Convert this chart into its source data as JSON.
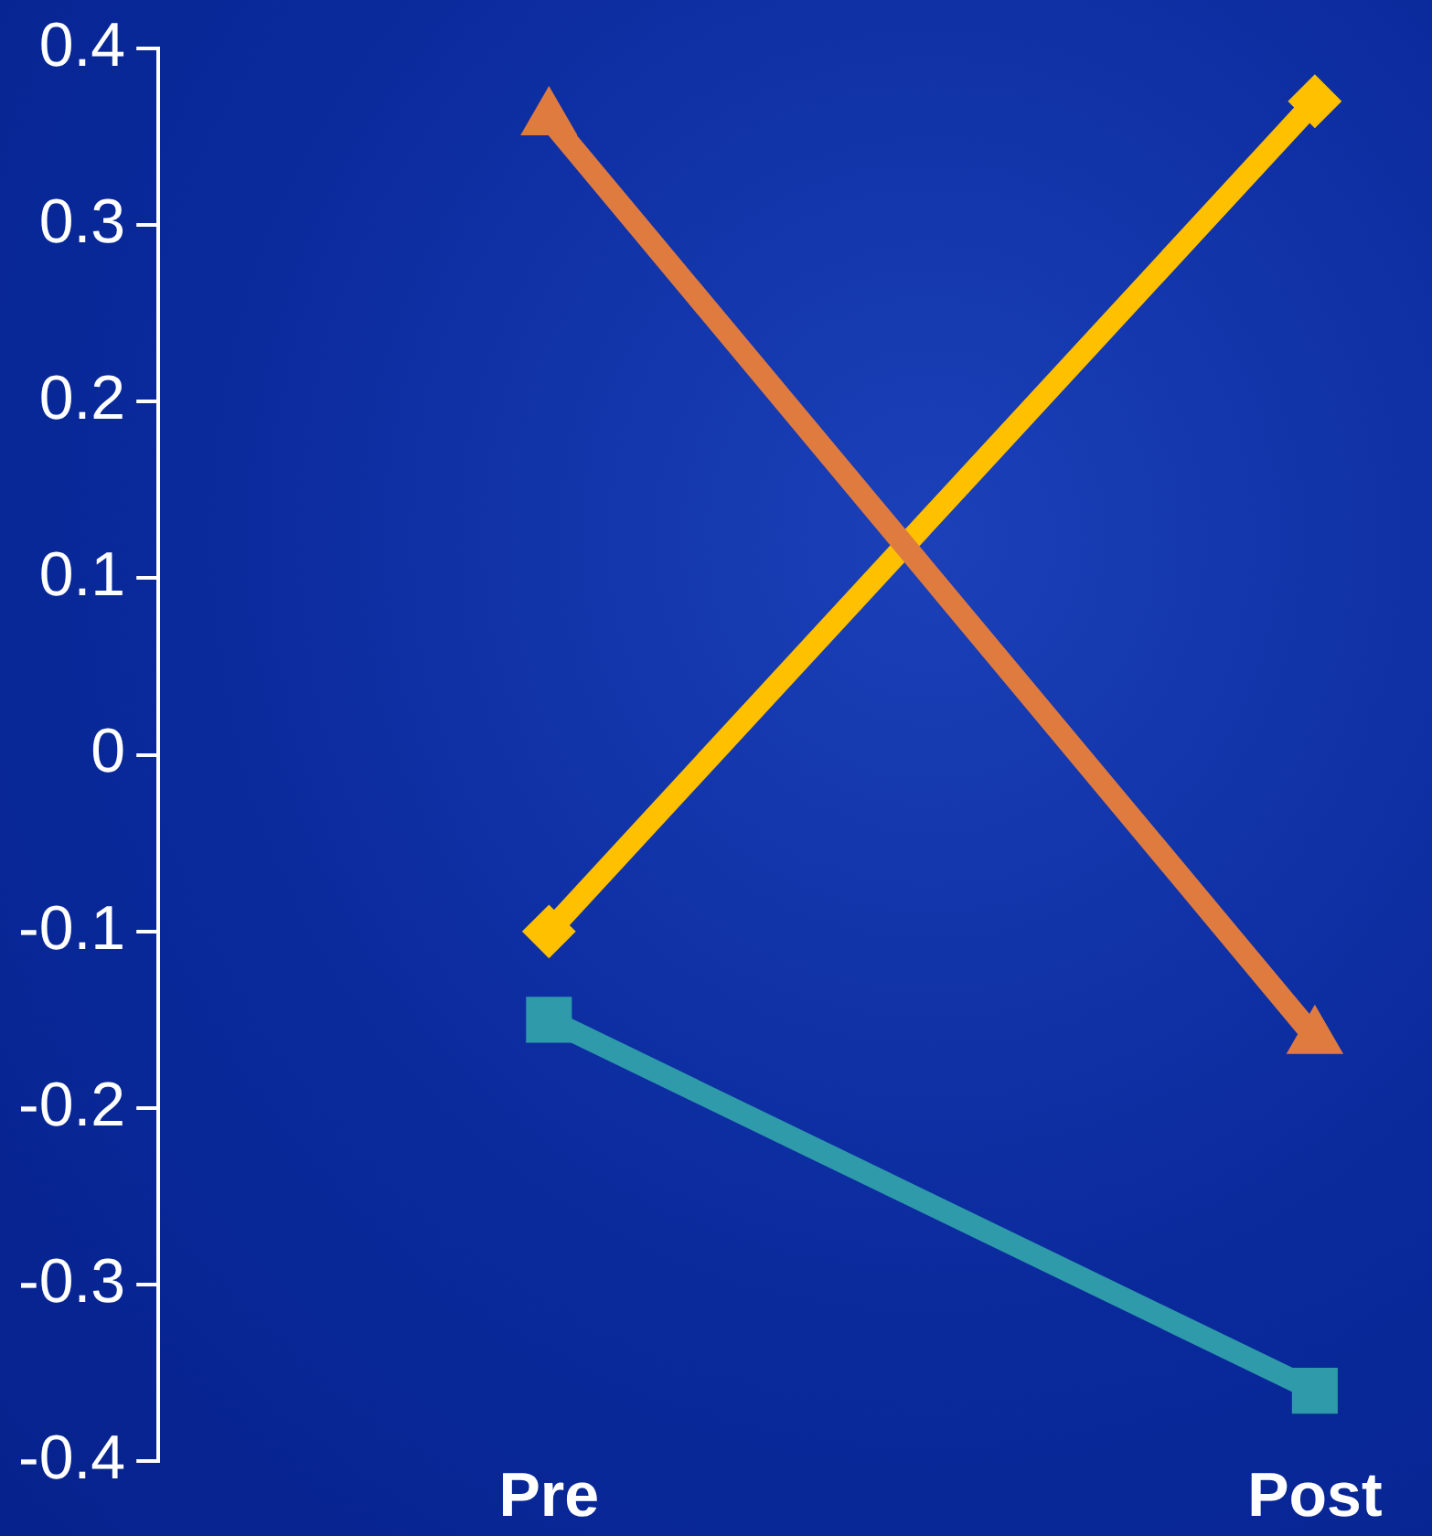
{
  "chart_data": {
    "type": "line",
    "categories": [
      "Pre",
      "Post"
    ],
    "series": [
      {
        "color": "#e07b40",
        "marker": "triangle",
        "values": [
          0.36,
          -0.16
        ]
      },
      {
        "color": "#ffc000",
        "marker": "diamond",
        "values": [
          -0.1,
          0.37
        ]
      },
      {
        "color": "#2e9aaa",
        "marker": "square",
        "values": [
          -0.15,
          -0.36
        ]
      }
    ],
    "ylim": [
      -0.4,
      0.4
    ],
    "yticks": [
      -0.4,
      -0.3,
      -0.2,
      -0.1,
      0,
      0.1,
      0.2,
      0.3,
      0.4
    ],
    "grid": false,
    "legend": false,
    "line_style": "solid"
  }
}
